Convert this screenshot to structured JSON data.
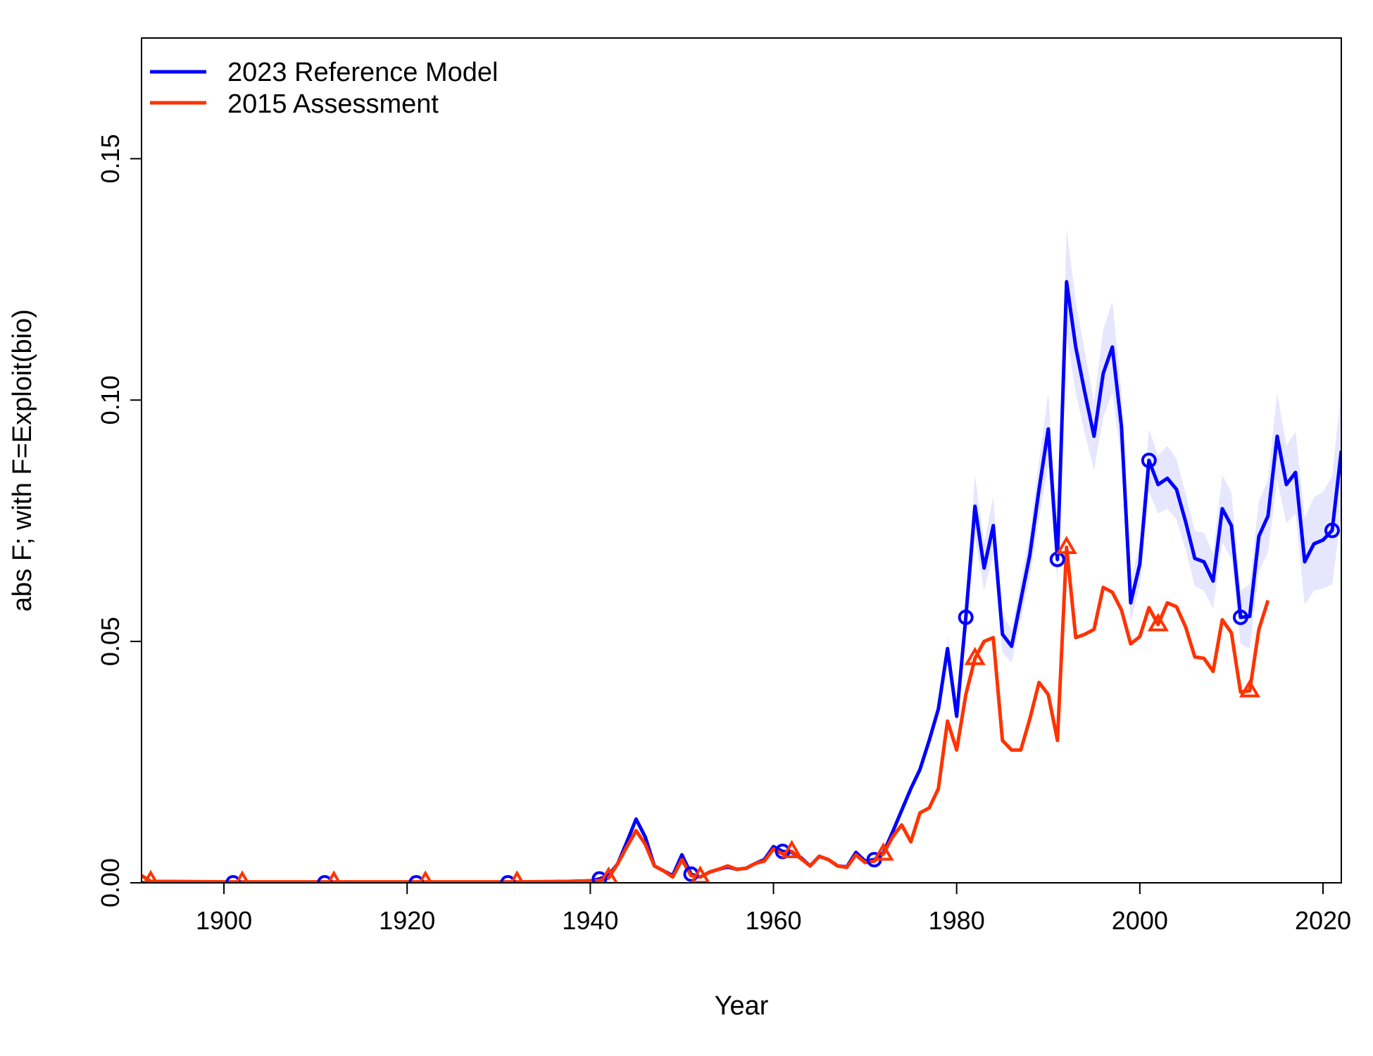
{
  "chart_data": {
    "type": "line",
    "title": "",
    "xlabel": "Year",
    "ylabel": "abs F; with F=Exploit(bio)",
    "xlim": [
      1891,
      2022
    ],
    "ylim": [
      0,
      0.175
    ],
    "x_ticks": [
      1900,
      1920,
      1940,
      1960,
      1980,
      2000,
      2020
    ],
    "x_tick_labels": [
      "1900",
      "1920",
      "1940",
      "1960",
      "1980",
      "2000",
      "2020"
    ],
    "y_ticks": [
      0,
      0.05,
      0.1,
      0.15
    ],
    "y_tick_labels": [
      "0.00",
      "0.05",
      "0.10",
      "0.15"
    ],
    "grid": false,
    "legend_position": "top-left",
    "series": [
      {
        "name": "2023 Reference Model",
        "color": "#0000ff",
        "marker": "circle",
        "marker_years": [
          1901,
          1911,
          1921,
          1931,
          1941,
          1951,
          1961,
          1971,
          1981,
          1991,
          2001,
          2011,
          2021
        ],
        "points": [
          [
            1891,
            0.0
          ],
          [
            1901,
            0.0
          ],
          [
            1911,
            0.0
          ],
          [
            1921,
            0.0
          ],
          [
            1931,
            0.0
          ],
          [
            1938,
            0.0003
          ],
          [
            1940,
            0.0004
          ],
          [
            1941,
            0.0008
          ],
          [
            1942,
            0.0015
          ],
          [
            1943,
            0.004
          ],
          [
            1944,
            0.0085
          ],
          [
            1945,
            0.0132
          ],
          [
            1946,
            0.0095
          ],
          [
            1947,
            0.0035
          ],
          [
            1948,
            0.0025
          ],
          [
            1949,
            0.0015
          ],
          [
            1950,
            0.0058
          ],
          [
            1951,
            0.0018
          ],
          [
            1952,
            0.0012
          ],
          [
            1953,
            0.0022
          ],
          [
            1954,
            0.0028
          ],
          [
            1955,
            0.0033
          ],
          [
            1956,
            0.0028
          ],
          [
            1957,
            0.003
          ],
          [
            1958,
            0.004
          ],
          [
            1959,
            0.0048
          ],
          [
            1960,
            0.0075
          ],
          [
            1961,
            0.0065
          ],
          [
            1962,
            0.0063
          ],
          [
            1963,
            0.0052
          ],
          [
            1964,
            0.0035
          ],
          [
            1965,
            0.0055
          ],
          [
            1966,
            0.0048
          ],
          [
            1967,
            0.0035
          ],
          [
            1968,
            0.0033
          ],
          [
            1969,
            0.0063
          ],
          [
            1970,
            0.0045
          ],
          [
            1971,
            0.0048
          ],
          [
            1972,
            0.0062
          ],
          [
            1973,
            0.0105
          ],
          [
            1974,
            0.015
          ],
          [
            1975,
            0.0195
          ],
          [
            1976,
            0.0235
          ],
          [
            1977,
            0.0295
          ],
          [
            1978,
            0.036
          ],
          [
            1979,
            0.0485
          ],
          [
            1980,
            0.0345
          ],
          [
            1981,
            0.055
          ],
          [
            1982,
            0.078
          ],
          [
            1983,
            0.0652
          ],
          [
            1984,
            0.074
          ],
          [
            1985,
            0.0515
          ],
          [
            1986,
            0.049
          ],
          [
            1987,
            0.0585
          ],
          [
            1988,
            0.068
          ],
          [
            1989,
            0.0815
          ],
          [
            1990,
            0.094
          ],
          [
            1991,
            0.067
          ],
          [
            1992,
            0.1245
          ],
          [
            1993,
            0.111
          ],
          [
            1994,
            0.1015
          ],
          [
            1995,
            0.0925
          ],
          [
            1996,
            0.1055
          ],
          [
            1997,
            0.111
          ],
          [
            1998,
            0.0945
          ],
          [
            1999,
            0.058
          ],
          [
            2000,
            0.066
          ],
          [
            2001,
            0.0875
          ],
          [
            2002,
            0.0825
          ],
          [
            2003,
            0.0838
          ],
          [
            2004,
            0.0815
          ],
          [
            2005,
            0.0748
          ],
          [
            2006,
            0.0672
          ],
          [
            2007,
            0.0665
          ],
          [
            2008,
            0.0625
          ],
          [
            2009,
            0.0775
          ],
          [
            2010,
            0.074
          ],
          [
            2011,
            0.055
          ],
          [
            2012,
            0.0552
          ],
          [
            2013,
            0.0718
          ],
          [
            2014,
            0.076
          ],
          [
            2015,
            0.0925
          ],
          [
            2016,
            0.0825
          ],
          [
            2017,
            0.085
          ],
          [
            2018,
            0.0665
          ],
          [
            2019,
            0.0702
          ],
          [
            2020,
            0.071
          ],
          [
            2021,
            0.073
          ],
          [
            2022,
            0.0895
          ]
        ],
        "interval": {
          "color": "#e6e6ff",
          "years": [
            1979,
            1980,
            1981,
            1982,
            1983,
            1984,
            1985,
            1986,
            1987,
            1988,
            1989,
            1990,
            1991,
            1992,
            1993,
            1994,
            1995,
            1996,
            1997,
            1998,
            1999,
            2000,
            2001,
            2002,
            2003,
            2004,
            2005,
            2006,
            2007,
            2008,
            2009,
            2010,
            2011,
            2012,
            2013,
            2014,
            2015,
            2016,
            2017,
            2018,
            2019,
            2020,
            2021,
            2022
          ],
          "lower": [
            0.0455,
            0.0325,
            0.0515,
            0.0715,
            0.0605,
            0.068,
            0.0478,
            0.0455,
            0.0545,
            0.0635,
            0.0755,
            0.0865,
            0.062,
            0.1135,
            0.1015,
            0.093,
            0.0855,
            0.0965,
            0.1015,
            0.0875,
            0.054,
            0.0615,
            0.081,
            0.0765,
            0.0775,
            0.0752,
            0.069,
            0.0615,
            0.0605,
            0.0568,
            0.0705,
            0.0672,
            0.0495,
            0.0485,
            0.0645,
            0.0685,
            0.0835,
            0.0745,
            0.0765,
            0.0575,
            0.0605,
            0.061,
            0.0618,
            0.0765
          ],
          "upper": [
            0.0515,
            0.0365,
            0.0585,
            0.0845,
            0.0705,
            0.08,
            0.0555,
            0.0525,
            0.0625,
            0.0725,
            0.0875,
            0.1015,
            0.072,
            0.1355,
            0.1205,
            0.11,
            0.0995,
            0.1145,
            0.1205,
            0.1015,
            0.062,
            0.0705,
            0.094,
            0.0885,
            0.0905,
            0.0878,
            0.0806,
            0.0729,
            0.0725,
            0.0682,
            0.0845,
            0.0808,
            0.0605,
            0.0619,
            0.0791,
            0.0835,
            0.1015,
            0.0905,
            0.0935,
            0.0755,
            0.0799,
            0.081,
            0.0842,
            0.1025
          ]
        }
      },
      {
        "name": "2015 Assessment",
        "color": "#ff3300",
        "marker": "triangle",
        "marker_years": [
          1892,
          1902,
          1912,
          1922,
          1932,
          1942,
          1952,
          1962,
          1972,
          1982,
          1992,
          2002,
          2012
        ],
        "points": [
          [
            1891,
            0.0015
          ],
          [
            1892,
            0.0003
          ],
          [
            1900,
            0.0002
          ],
          [
            1902,
            0.0002
          ],
          [
            1912,
            0.0002
          ],
          [
            1922,
            0.0002
          ],
          [
            1932,
            0.0002
          ],
          [
            1938,
            0.0003
          ],
          [
            1941,
            0.0005
          ],
          [
            1942,
            0.001
          ],
          [
            1943,
            0.004
          ],
          [
            1944,
            0.0075
          ],
          [
            1945,
            0.0108
          ],
          [
            1946,
            0.008
          ],
          [
            1947,
            0.0035
          ],
          [
            1948,
            0.0025
          ],
          [
            1949,
            0.0012
          ],
          [
            1950,
            0.0048
          ],
          [
            1951,
            0.0015
          ],
          [
            1952,
            0.0012
          ],
          [
            1953,
            0.0022
          ],
          [
            1954,
            0.0028
          ],
          [
            1955,
            0.0035
          ],
          [
            1956,
            0.0028
          ],
          [
            1957,
            0.003
          ],
          [
            1958,
            0.004
          ],
          [
            1959,
            0.0045
          ],
          [
            1960,
            0.007
          ],
          [
            1961,
            0.006
          ],
          [
            1962,
            0.0065
          ],
          [
            1963,
            0.005
          ],
          [
            1964,
            0.0035
          ],
          [
            1965,
            0.0055
          ],
          [
            1966,
            0.0048
          ],
          [
            1967,
            0.0035
          ],
          [
            1968,
            0.0032
          ],
          [
            1969,
            0.0058
          ],
          [
            1970,
            0.0042
          ],
          [
            1971,
            0.0045
          ],
          [
            1972,
            0.006
          ],
          [
            1973,
            0.0095
          ],
          [
            1974,
            0.012
          ],
          [
            1975,
            0.0085
          ],
          [
            1976,
            0.0145
          ],
          [
            1977,
            0.0155
          ],
          [
            1978,
            0.0195
          ],
          [
            1979,
            0.0335
          ],
          [
            1980,
            0.0275
          ],
          [
            1981,
            0.039
          ],
          [
            1982,
            0.0465
          ],
          [
            1983,
            0.05
          ],
          [
            1984,
            0.0508
          ],
          [
            1985,
            0.0295
          ],
          [
            1986,
            0.0275
          ],
          [
            1987,
            0.0275
          ],
          [
            1988,
            0.034
          ],
          [
            1989,
            0.0415
          ],
          [
            1990,
            0.039
          ],
          [
            1991,
            0.0295
          ],
          [
            1992,
            0.0695
          ],
          [
            1993,
            0.0508
          ],
          [
            1994,
            0.0515
          ],
          [
            1995,
            0.0525
          ],
          [
            1996,
            0.0612
          ],
          [
            1997,
            0.0602
          ],
          [
            1998,
            0.0565
          ],
          [
            1999,
            0.0495
          ],
          [
            2000,
            0.051
          ],
          [
            2001,
            0.057
          ],
          [
            2002,
            0.0535
          ],
          [
            2003,
            0.058
          ],
          [
            2004,
            0.0572
          ],
          [
            2005,
            0.053
          ],
          [
            2006,
            0.0468
          ],
          [
            2007,
            0.0465
          ],
          [
            2008,
            0.0438
          ],
          [
            2009,
            0.0545
          ],
          [
            2010,
            0.0518
          ],
          [
            2011,
            0.0395
          ],
          [
            2012,
            0.0398
          ],
          [
            2013,
            0.0525
          ],
          [
            2014,
            0.0585
          ]
        ]
      }
    ]
  }
}
